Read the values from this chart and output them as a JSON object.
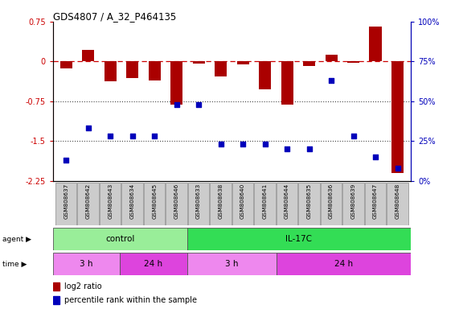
{
  "title": "GDS4807 / A_32_P464135",
  "samples": [
    "GSM808637",
    "GSM808642",
    "GSM808643",
    "GSM808634",
    "GSM808645",
    "GSM808646",
    "GSM808633",
    "GSM808638",
    "GSM808640",
    "GSM808641",
    "GSM808644",
    "GSM808635",
    "GSM808636",
    "GSM808639",
    "GSM808647",
    "GSM808648"
  ],
  "log2_ratio": [
    -0.13,
    0.22,
    -0.38,
    -0.32,
    -0.36,
    -0.82,
    -0.04,
    -0.28,
    -0.06,
    -0.52,
    -0.82,
    -0.08,
    0.13,
    -0.03,
    0.65,
    -2.1
  ],
  "percentile": [
    13,
    33,
    28,
    28,
    28,
    48,
    48,
    23,
    23,
    23,
    20,
    20,
    63,
    28,
    15,
    8
  ],
  "ylim_left": [
    -2.25,
    0.75
  ],
  "ylim_right": [
    0,
    100
  ],
  "agent_groups": [
    {
      "label": "control",
      "start": 0,
      "end": 6,
      "color": "#99EE99"
    },
    {
      "label": "IL-17C",
      "start": 6,
      "end": 16,
      "color": "#33DD55"
    }
  ],
  "time_groups": [
    {
      "label": "3 h",
      "start": 0,
      "end": 3,
      "color": "#EE88EE"
    },
    {
      "label": "24 h",
      "start": 3,
      "end": 6,
      "color": "#DD44DD"
    },
    {
      "label": "3 h",
      "start": 6,
      "end": 10,
      "color": "#EE88EE"
    },
    {
      "label": "24 h",
      "start": 10,
      "end": 16,
      "color": "#DD44DD"
    }
  ],
  "bar_color": "#AA0000",
  "dot_color": "#0000BB",
  "dashed_line_color": "#CC0000",
  "dotted_line_color": "#444444",
  "bar_width": 0.55,
  "n_samples": 16
}
